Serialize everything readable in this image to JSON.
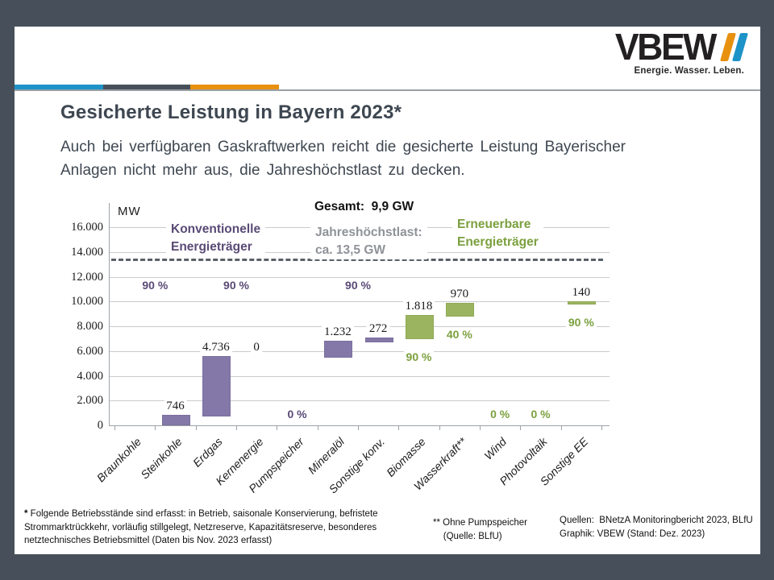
{
  "slide": {
    "title": "Gesicherte Leistung in Bayern 2023*",
    "subtitle_lines": [
      "Auch bei verfügbaren Gaskraftwerken reicht die gesicherte Leistung Bayerischer",
      "Anlagen nicht mehr aus, die Jahreshöchstlast zu decken."
    ]
  },
  "logo": {
    "wordmark": "VBEW",
    "tagline": "Energie. Wasser. Leben.",
    "slash_colors": [
      "#E8910F",
      "#1E93C8"
    ]
  },
  "colors": {
    "frame": "#47505A",
    "accent_blue": "#1E93C8",
    "accent_slate": "#47505A",
    "accent_orange": "#E8910F",
    "conventional_bar": "#8478A8",
    "conventional_text": "#5A4A76",
    "renewable_bar": "#9BB45F",
    "renewable_text": "#7BA03E",
    "threshold_text": "#8F9298"
  },
  "chart_data": {
    "type": "bar",
    "subtype": "waterfall",
    "unit": "MW",
    "total_label": "Gesamt:  9,9 GW",
    "legend_conventional": "Konventionelle\nEnergieträger",
    "legend_renewable": "Erneuerbare\nEnergieträger",
    "threshold": {
      "value_mw": 13450,
      "label": "Jahreshöchstlast:\nca. 13,5 GW"
    },
    "ylim": [
      0,
      16000
    ],
    "ytick_step": 2000,
    "ytick_labels": [
      "0",
      "2.000",
      "4.000",
      "6.000",
      "8.000",
      "10.000",
      "12.000",
      "14.000",
      "16.000"
    ],
    "categories": [
      {
        "name": "Braunkohle",
        "value": null,
        "value_label": "",
        "percent": "",
        "percent_placement": "",
        "group": "konv"
      },
      {
        "name": "Steinkohle",
        "value": 746,
        "value_label": "746",
        "percent": "",
        "percent_placement": "",
        "group": "konv"
      },
      {
        "name": "Erdgas",
        "value": 4736,
        "value_label": "4.736",
        "percent": "",
        "percent_placement": "",
        "group": "konv"
      },
      {
        "name": "Kernenergie",
        "value": 0,
        "value_label": "0",
        "percent": "",
        "percent_placement": "",
        "group": "konv"
      },
      {
        "name": "Pumpspeicher",
        "value": null,
        "value_label": "",
        "percent": "0 %",
        "percent_placement": "baseline",
        "group": "konv"
      },
      {
        "name": "Mineralöl",
        "value": 1232,
        "value_label": "1.232",
        "percent": "",
        "percent_placement": "",
        "group": "konv"
      },
      {
        "name": "Sonstige konv.",
        "value": 272,
        "value_label": "272",
        "percent": "",
        "percent_placement": "",
        "group": "konv"
      },
      {
        "name": "Biomasse",
        "value": 1818,
        "value_label": "1.818",
        "percent": "90 %",
        "percent_placement": "below_bar",
        "group": "ee"
      },
      {
        "name": "Wasserkraft**",
        "value": 970,
        "value_label": "970",
        "percent": "40 %",
        "percent_placement": "below_bar",
        "group": "ee"
      },
      {
        "name": "Wind",
        "value": null,
        "value_label": "",
        "percent": "0 %",
        "percent_placement": "baseline",
        "group": "ee"
      },
      {
        "name": "Photovoltaik",
        "value": null,
        "value_label": "",
        "percent": "0 %",
        "percent_placement": "baseline",
        "group": "ee"
      },
      {
        "name": "Sonstige EE",
        "value": 140,
        "value_label": "140",
        "percent": "90 %",
        "percent_placement": "below_bar",
        "group": "ee"
      }
    ],
    "pair_percent_labels": [
      {
        "text": "90 %",
        "between": [
          0,
          1
        ]
      },
      {
        "text": "90 %",
        "between": [
          2,
          3
        ]
      },
      {
        "text": "90 %",
        "between": [
          5,
          6
        ]
      }
    ]
  },
  "footnotes": {
    "note1_marker": "*",
    "note1_text": " Folgende Betriebsstände sind erfasst: in Betrieb, saisonale Konservierung, befristete Strommarktrückkehr, vorläufig stillgelegt, Netzreserve, Kapazitätsreserve, besonderes netztechnisches Betriebsmittel (Daten bis Nov. 2023 erfasst)",
    "note2": "** Ohne Pumpspeicher\n    (Quelle: BLfU)",
    "sources": "Quellen:  BNetzA Monitoringbericht 2023, BLfU\nGraphik: VBEW (Stand: Dez. 2023)"
  }
}
